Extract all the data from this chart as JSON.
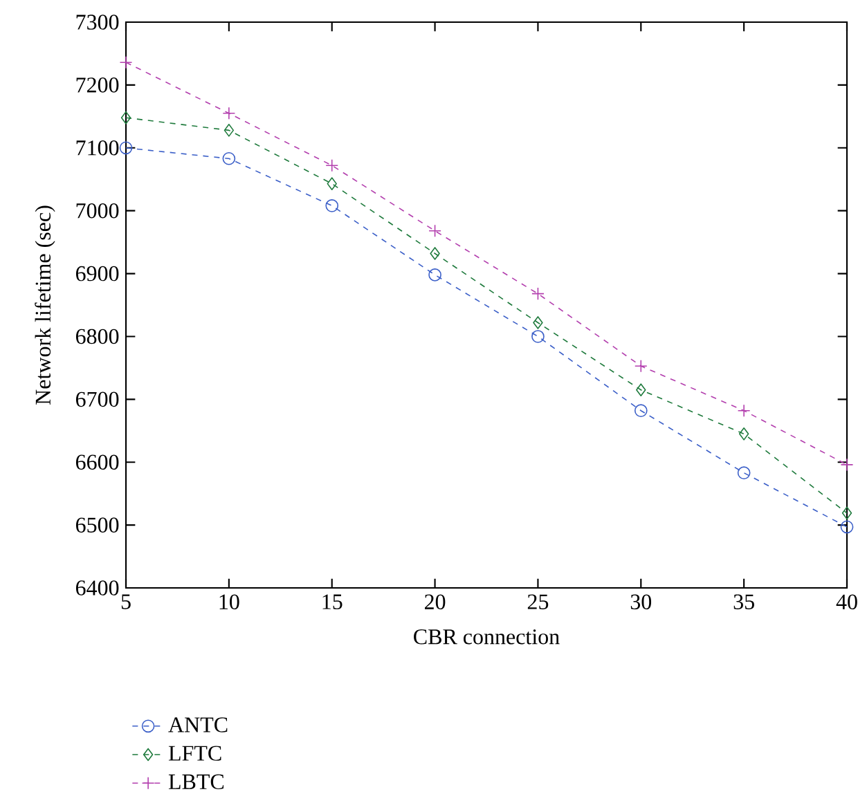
{
  "chart_data": {
    "type": "line",
    "xlabel": "CBR connection",
    "ylabel": "Network lifetime (sec)",
    "x": [
      5,
      10,
      15,
      20,
      25,
      30,
      35,
      40
    ],
    "series": [
      {
        "name": "ANTC",
        "color": "#3b5fc8",
        "marker": "circle",
        "values": [
          7100,
          7083,
          7008,
          6898,
          6800,
          6682,
          6583,
          6497
        ]
      },
      {
        "name": "LFTC",
        "color": "#1e7a3c",
        "marker": "diamond",
        "values": [
          7148,
          7128,
          7043,
          6932,
          6822,
          6715,
          6645,
          6519
        ]
      },
      {
        "name": "LBTC",
        "color": "#b33fae",
        "marker": "cross",
        "values": [
          7236,
          7155,
          7072,
          6968,
          6868,
          6753,
          6682,
          6596
        ]
      }
    ],
    "xlim": [
      5,
      40
    ],
    "xticks": [
      5,
      10,
      15,
      20,
      25,
      30,
      35,
      40
    ],
    "ylim": [
      6400,
      7300
    ],
    "yticks": [
      6400,
      6500,
      6600,
      6700,
      6800,
      6900,
      7000,
      7100,
      7200,
      7300
    ],
    "line_style": "dashed",
    "grid": false,
    "legend": "bottom left"
  }
}
